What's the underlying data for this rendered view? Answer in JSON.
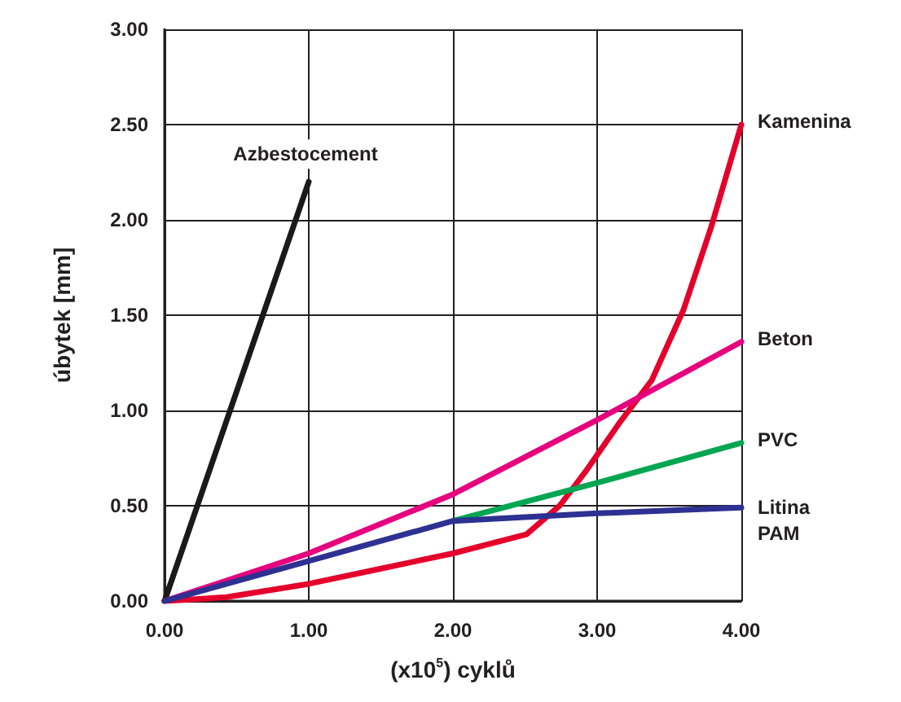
{
  "chart_data": {
    "type": "line",
    "xlabel": "(x10$^{5}$) cyklů",
    "ylabel": "úbytek [mm]",
    "xlim": [
      0,
      4
    ],
    "xticks": [
      {
        "value": 0,
        "label": "0.00"
      },
      {
        "value": 1,
        "label": "1.00"
      },
      {
        "value": 2,
        "label": "2.00"
      },
      {
        "value": 3,
        "label": "3.00"
      },
      {
        "value": 4,
        "label": "4.00"
      }
    ],
    "ylim": [
      0,
      3
    ],
    "yticks": [
      {
        "value": 0,
        "label": "0.00"
      },
      {
        "value": 0.5,
        "label": "0.50"
      },
      {
        "value": 1,
        "label": "1.00"
      },
      {
        "value": 1.5,
        "label": "1.50"
      },
      {
        "value": 2,
        "label": "2.00"
      },
      {
        "value": 2.5,
        "label": "2.50"
      },
      {
        "value": 3,
        "label": "3.00"
      }
    ],
    "grid": true,
    "legend": false,
    "marker": "none",
    "line_style": "solid",
    "series": [
      {
        "name": "Azbestocement",
        "color": "#1a1a1a",
        "x": [
          0,
          1
        ],
        "values": [
          0,
          2.2
        ]
      },
      {
        "name": "Kamenina",
        "color": "#e4002b",
        "x": [
          0,
          0.43,
          1,
          1.5,
          2,
          2.51,
          2.74,
          2.92,
          3.15,
          3.38,
          3.6,
          3.79,
          4
        ],
        "values": [
          0,
          0.02,
          0.09,
          0.17,
          0.25,
          0.35,
          0.5,
          0.68,
          0.93,
          1.16,
          1.53,
          1.96,
          2.5
        ]
      },
      {
        "name": "Beton",
        "color": "#e6007e",
        "x": [
          0,
          1,
          2,
          3,
          4
        ],
        "values": [
          0,
          0.25,
          0.56,
          0.95,
          1.36
        ]
      },
      {
        "name": "PVC",
        "color": "#00a651",
        "x": [
          2,
          3,
          4
        ],
        "values": [
          0.42,
          0.62,
          0.83
        ]
      },
      {
        "name": "Litina PAM",
        "color": "#2e3192",
        "x": [
          0,
          1,
          2,
          3,
          4
        ],
        "values": [
          0,
          0.21,
          0.42,
          0.46,
          0.49
        ]
      }
    ]
  }
}
